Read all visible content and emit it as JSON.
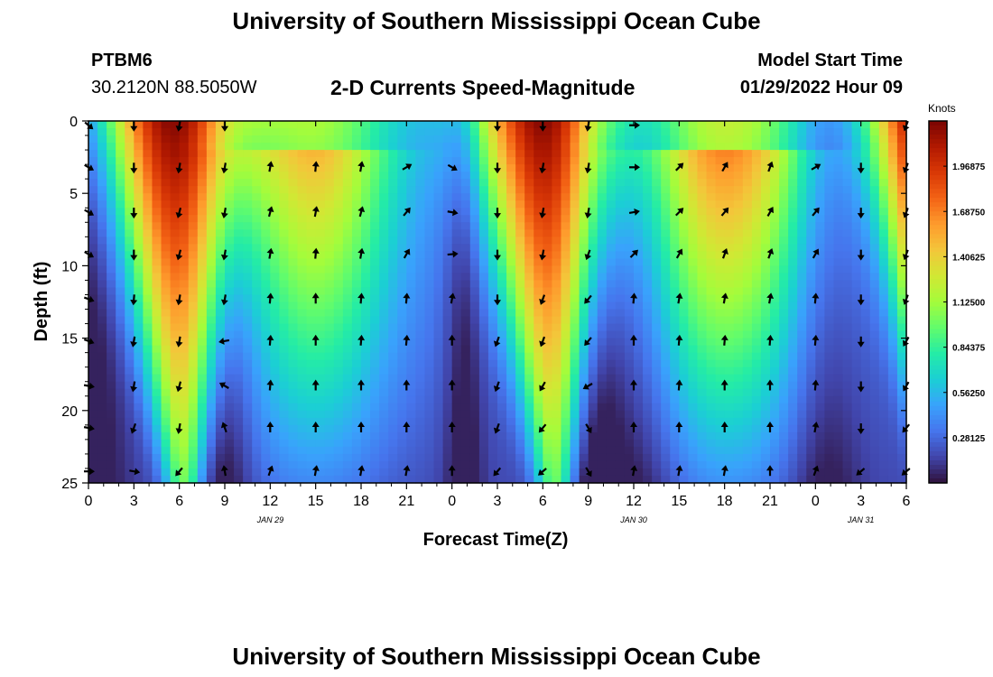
{
  "header": {
    "title": "University of Southern Mississippi Ocean Cube",
    "station": "PTBM6",
    "coords": "30.2120N  88.5050W",
    "chart_title": "2-D Currents Speed-Magnitude",
    "model_label": "Model Start Time",
    "model_time": "01/29/2022 Hour 09"
  },
  "footer": {
    "title": "University of Southern Mississippi Ocean Cube"
  },
  "colorbar": {
    "label": "Knots",
    "ticks": [
      "1.96875",
      "1.68750",
      "1.40625",
      "1.12500",
      "0.84375",
      "0.56250",
      "0.28125"
    ],
    "tick_values": [
      1.96875,
      1.6875,
      1.40625,
      1.125,
      0.84375,
      0.5625,
      0.28125
    ],
    "range": [
      0,
      2.25
    ],
    "colors": [
      "#30123b",
      "#4145ab",
      "#4675ed",
      "#39a2fc",
      "#1bcfd4",
      "#24eca6",
      "#61fc6c",
      "#a4fc3b",
      "#d1e834",
      "#f3c63a",
      "#fe9b2d",
      "#f36315",
      "#d93806",
      "#b11901",
      "#7a0402"
    ]
  },
  "chart_data": {
    "type": "heatmap",
    "title": "2-D Currents Speed-Magnitude",
    "xlabel": "Forecast Time(Z)",
    "ylabel": "Depth (ft)",
    "x_ticks": [
      "0",
      "3",
      "6",
      "9",
      "12",
      "15",
      "18",
      "21",
      "0",
      "3",
      "6",
      "9",
      "12",
      "15",
      "18",
      "21",
      "0",
      "3",
      "6"
    ],
    "x_range_hours": [
      0,
      54
    ],
    "y_ticks": [
      "0",
      "5",
      "10",
      "15",
      "20",
      "25"
    ],
    "y_range_ft": [
      0,
      25
    ],
    "date_labels": [
      {
        "text": "JAN 29",
        "hour": 12
      },
      {
        "text": "JAN 30",
        "hour": 36
      },
      {
        "text": "JAN 31",
        "hour": 51
      }
    ],
    "speed_units": "Knots",
    "arrow_hours": [
      0,
      3,
      6,
      9,
      12,
      15,
      18,
      21,
      24,
      27,
      30,
      33,
      36,
      39,
      42,
      45,
      48,
      51,
      54
    ],
    "arrow_depths_ft": [
      0.3,
      3.2,
      6.3,
      9.2,
      12.3,
      15.2,
      18.3,
      21.2,
      24.2
    ],
    "arrow_direction_deg": [
      [
        130,
        180,
        190,
        180,
        null,
        null,
        null,
        null,
        null,
        180,
        180,
        190,
        90,
        null,
        null,
        null,
        null,
        null,
        200
      ],
      [
        120,
        180,
        190,
        190,
        10,
        5,
        10,
        60,
        120,
        180,
        190,
        190,
        90,
        45,
        30,
        20,
        60,
        180,
        200
      ],
      [
        120,
        180,
        195,
        190,
        15,
        10,
        15,
        40,
        100,
        180,
        190,
        190,
        80,
        45,
        40,
        30,
        40,
        180,
        200
      ],
      [
        120,
        180,
        195,
        190,
        10,
        5,
        10,
        30,
        85,
        180,
        190,
        200,
        45,
        30,
        20,
        20,
        30,
        180,
        200
      ],
      [
        110,
        185,
        190,
        190,
        5,
        0,
        5,
        5,
        10,
        180,
        200,
        220,
        5,
        10,
        10,
        10,
        5,
        180,
        200
      ],
      [
        110,
        190,
        190,
        260,
        5,
        0,
        5,
        5,
        0,
        200,
        200,
        220,
        0,
        5,
        5,
        5,
        5,
        180,
        210
      ],
      [
        100,
        190,
        195,
        300,
        5,
        0,
        0,
        0,
        0,
        200,
        210,
        240,
        0,
        5,
        0,
        0,
        5,
        180,
        210
      ],
      [
        100,
        200,
        190,
        340,
        0,
        0,
        0,
        0,
        0,
        200,
        220,
        150,
        0,
        0,
        0,
        0,
        10,
        180,
        220
      ],
      [
        90,
        100,
        220,
        350,
        20,
        10,
        10,
        10,
        0,
        220,
        230,
        150,
        10,
        10,
        10,
        0,
        20,
        230,
        230
      ]
    ]
  }
}
